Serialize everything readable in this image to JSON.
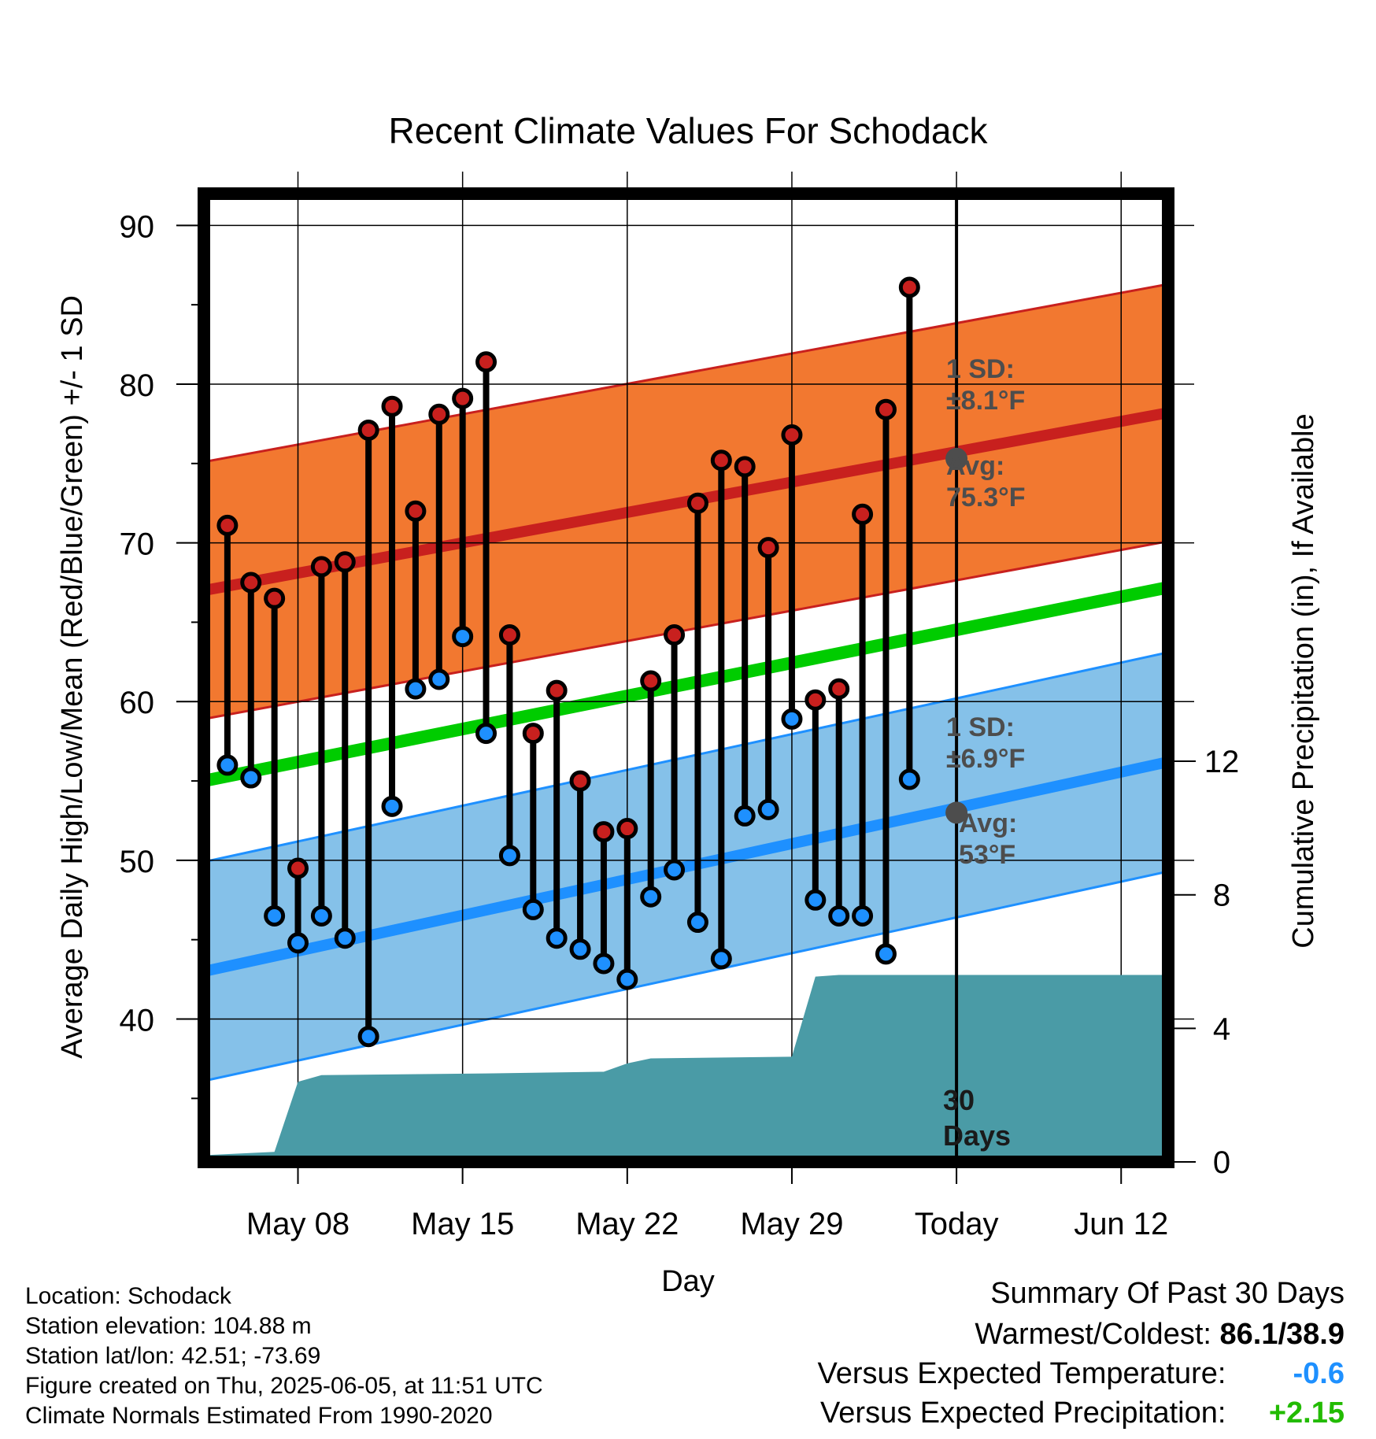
{
  "chart_data": {
    "type": "line",
    "title": "Recent Climate Values For Schodack",
    "xlabel": "Day",
    "ylabel": "Average Daily High/Low/Mean (Red/Blue/Green) +/- 1 SD",
    "ylabel_right": "Cumulative Precipitation (in), If Available",
    "ylim": [
      31,
      92
    ],
    "ylim_right": [
      0,
      29
    ],
    "xlim": [
      "2025-05-04",
      "2025-06-14"
    ],
    "grid": true,
    "x_ticks": [
      {
        "date": "2025-05-08",
        "label": "May 08"
      },
      {
        "date": "2025-05-15",
        "label": "May 15"
      },
      {
        "date": "2025-05-22",
        "label": "May 22"
      },
      {
        "date": "2025-05-29",
        "label": "May 29"
      },
      {
        "date": "2025-06-05",
        "label": "Today"
      },
      {
        "date": "2025-06-12",
        "label": "Jun 12"
      }
    ],
    "y_ticks": [
      "40",
      "50",
      "60",
      "70",
      "80",
      "90"
    ],
    "y_ticks_right": [
      "0",
      "4",
      "8",
      "12"
    ],
    "today": "2025-06-05",
    "dates": [
      "2025-05-05",
      "2025-05-06",
      "2025-05-07",
      "2025-05-08",
      "2025-05-09",
      "2025-05-10",
      "2025-05-11",
      "2025-05-12",
      "2025-05-13",
      "2025-05-14",
      "2025-05-15",
      "2025-05-16",
      "2025-05-17",
      "2025-05-18",
      "2025-05-19",
      "2025-05-20",
      "2025-05-21",
      "2025-05-22",
      "2025-05-23",
      "2025-05-24",
      "2025-05-25",
      "2025-05-26",
      "2025-05-27",
      "2025-05-28",
      "2025-05-29",
      "2025-05-30",
      "2025-05-31",
      "2025-06-01",
      "2025-06-02",
      "2025-06-03",
      "2025-06-04"
    ],
    "series": [
      {
        "name": "High",
        "color": "#c8201e",
        "values": [
          71.1,
          67.5,
          66.5,
          49.5,
          68.5,
          68.8,
          77.1,
          78.6,
          72.0,
          78.1,
          79.1,
          81.4,
          64.2,
          58.0,
          60.7,
          55.0,
          51.8,
          52.0,
          61.3,
          64.2,
          72.5,
          75.2,
          74.8,
          69.7,
          76.8,
          60.1,
          60.8,
          71.8,
          78.4,
          86.1,
          null
        ]
      },
      {
        "name": "Low",
        "color": "#1e90ff",
        "values": [
          56.0,
          55.2,
          46.5,
          44.8,
          46.5,
          45.1,
          38.9,
          53.4,
          60.8,
          61.4,
          64.1,
          58.0,
          50.3,
          46.9,
          45.1,
          44.4,
          43.5,
          42.5,
          47.7,
          49.4,
          46.1,
          43.8,
          52.8,
          53.2,
          58.9,
          47.5,
          46.5,
          46.5,
          44.1,
          55.1,
          null
        ]
      }
    ],
    "normals": {
      "high_avg": {
        "start": 67.0,
        "end": 78.2
      },
      "low_avg": {
        "start": 43.0,
        "end": 56.2
      },
      "mean_avg": {
        "start": 55.0,
        "end": 67.2
      },
      "high_sd": 8.1,
      "low_sd": 6.9
    },
    "precip_cumulative": [
      {
        "date": "2025-05-04",
        "value": 0.2
      },
      {
        "date": "2025-05-07",
        "value": 0.3
      },
      {
        "date": "2025-05-08",
        "value": 2.4
      },
      {
        "date": "2025-05-09",
        "value": 2.6
      },
      {
        "date": "2025-05-16",
        "value": 2.65
      },
      {
        "date": "2025-05-21",
        "value": 2.7
      },
      {
        "date": "2025-05-22",
        "value": 2.95
      },
      {
        "date": "2025-05-23",
        "value": 3.1
      },
      {
        "date": "2025-05-29",
        "value": 3.15
      },
      {
        "date": "2025-05-30",
        "value": 5.55
      },
      {
        "date": "2025-05-31",
        "value": 5.6
      },
      {
        "date": "2025-06-14",
        "value": 5.6
      }
    ],
    "annotations": {
      "high_sd_label": "1 SD:",
      "high_sd_value": "±8.1°F",
      "high_avg_label": "Avg:",
      "high_avg_value": "75.3°F",
      "low_sd_label": "1 SD:",
      "low_sd_value": "±6.9°F",
      "low_avg_label": "Avg:",
      "low_avg_value": "53°F",
      "days_number": "30",
      "days_word": "Days",
      "high_avg_today": 75.3,
      "low_avg_today": 53.0
    },
    "colors": {
      "high_band": "#f27830",
      "high_line": "#c8201e",
      "low_band": "#85c1e9",
      "low_line": "#1e90ff",
      "mean_line": "#00cc00",
      "precip": "#4a9ba6"
    }
  },
  "info": {
    "location": "Location: Schodack",
    "elevation": "Station elevation: 104.88 m",
    "latlon": "Station lat/lon: 42.51; -73.69",
    "created": "Figure created on Thu, 2025-06-05, at 11:51 UTC",
    "normals": "Climate Normals Estimated From 1990-2020"
  },
  "summary": {
    "title": "Summary Of Past 30 Days",
    "warm_cold_label": "Warmest/Coldest:",
    "warm_cold_value": "86.1/38.9",
    "temp_label": "Versus Expected Temperature:",
    "temp_value": "-0.6",
    "temp_color": "#1e90ff",
    "precip_label": "Versus Expected Precipitation:",
    "precip_value": "+2.15",
    "precip_color": "#22bb00"
  }
}
